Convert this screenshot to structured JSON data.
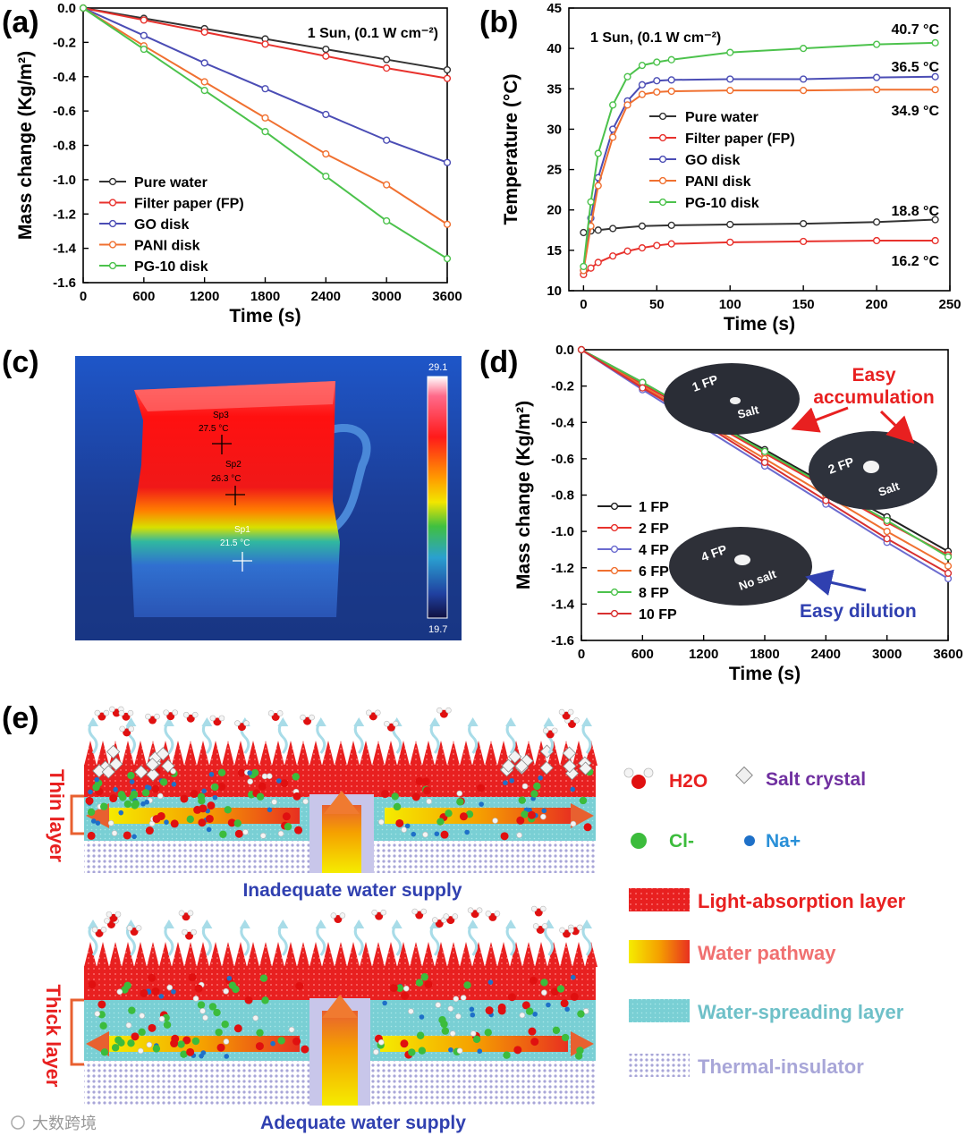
{
  "panel_labels": [
    "(a)",
    "(b)",
    "(c)",
    "(d)",
    "(e)"
  ],
  "panel_c": {
    "scale_max": "29.1",
    "scale_min": "19.7",
    "spots": [
      {
        "name": "Sp3",
        "temp": "27.5 °C"
      },
      {
        "name": "Sp2",
        "temp": "26.3 °C"
      },
      {
        "name": "Sp1",
        "temp": "21.5 °C"
      }
    ]
  },
  "panel_e": {
    "top_side_label": "Thin layer",
    "top_caption": "Inadequate water supply",
    "bottom_side_label": "Thick layer",
    "bottom_caption": "Adequate water supply",
    "legend": {
      "h2o": "H2O",
      "salt": "Salt crystal",
      "cl": "Cl-",
      "na": "Na+",
      "light": "Light-absorption layer",
      "pathway": "Water pathway",
      "spreading": "Water-spreading  layer",
      "insulator": "Thermal-insulator"
    }
  },
  "watermark": "大数跨境",
  "chart_data": [
    {
      "id": "a",
      "type": "line",
      "annotation": "1 Sun, (0.1 W cm⁻²)",
      "xlabel": "Time (s)",
      "ylabel": "Mass change (Kg/m²)",
      "xlim": [
        0,
        3600
      ],
      "ylim": [
        -1.6,
        0.0
      ],
      "xticks": [
        0,
        600,
        1200,
        1800,
        2400,
        3000,
        3600
      ],
      "yticks": [
        0.0,
        -0.2,
        -0.4,
        -0.6,
        -0.8,
        -1.0,
        -1.2,
        -1.4,
        -1.6
      ],
      "ytick_labels": [
        "0.0",
        "-0.2",
        "-0.4",
        "-0.6",
        "-0.8",
        "-1.0",
        "-1.2",
        "-1.4",
        "-1.6"
      ],
      "legend_position": "bottom-left",
      "series": [
        {
          "name": "Pure water",
          "color": "#333333",
          "x": [
            0,
            600,
            1200,
            1800,
            2400,
            3000,
            3600
          ],
          "y": [
            0,
            -0.06,
            -0.12,
            -0.18,
            -0.24,
            -0.3,
            -0.36
          ]
        },
        {
          "name": "Filter paper (FP)",
          "color": "#e8322d",
          "x": [
            0,
            600,
            1200,
            1800,
            2400,
            3000,
            3600
          ],
          "y": [
            0,
            -0.07,
            -0.14,
            -0.21,
            -0.28,
            -0.35,
            -0.41
          ]
        },
        {
          "name": "GO disk",
          "color": "#4b4db5",
          "x": [
            0,
            600,
            1200,
            1800,
            2400,
            3000,
            3600
          ],
          "y": [
            0,
            -0.16,
            -0.32,
            -0.47,
            -0.62,
            -0.77,
            -0.9
          ]
        },
        {
          "name": "PANI disk",
          "color": "#f07030",
          "x": [
            0,
            600,
            1200,
            1800,
            2400,
            3000,
            3600
          ],
          "y": [
            0,
            -0.22,
            -0.43,
            -0.64,
            -0.85,
            -1.03,
            -1.26
          ]
        },
        {
          "name": "PG-10 disk",
          "color": "#4cc24c",
          "x": [
            0,
            600,
            1200,
            1800,
            2400,
            3000,
            3600
          ],
          "y": [
            0,
            -0.24,
            -0.48,
            -0.72,
            -0.98,
            -1.24,
            -1.46
          ]
        }
      ]
    },
    {
      "id": "b",
      "type": "line",
      "annotation": "1 Sun, (0.1 W cm⁻²)",
      "xlabel": "Time (s)",
      "ylabel": "Temperature (°C)",
      "xlim": [
        -10,
        250
      ],
      "ylim": [
        10,
        45
      ],
      "xticks": [
        0,
        50,
        100,
        150,
        200,
        250
      ],
      "yticks": [
        10,
        15,
        20,
        25,
        30,
        35,
        40,
        45
      ],
      "ytick_labels": [
        "10",
        "15",
        "20",
        "25",
        "30",
        "35",
        "40",
        "45"
      ],
      "legend_position": "center-right",
      "end_labels": [
        "40.7 °C",
        "36.5 °C",
        "34.9 °C",
        "18.8 °C",
        "16.2 °C"
      ],
      "series": [
        {
          "name": "Pure water",
          "color": "#333333",
          "x": [
            0,
            5,
            10,
            20,
            40,
            60,
            100,
            150,
            200,
            240
          ],
          "y": [
            17.2,
            17.4,
            17.5,
            17.7,
            18.0,
            18.1,
            18.2,
            18.3,
            18.5,
            18.8
          ]
        },
        {
          "name": "Filter paper (FP)",
          "color": "#e8322d",
          "x": [
            0,
            5,
            10,
            20,
            30,
            40,
            50,
            60,
            100,
            150,
            200,
            240
          ],
          "y": [
            12.0,
            12.8,
            13.5,
            14.3,
            14.9,
            15.3,
            15.6,
            15.8,
            16.0,
            16.1,
            16.2,
            16.2
          ]
        },
        {
          "name": "GO disk",
          "color": "#4b4db5",
          "x": [
            0,
            5,
            10,
            20,
            30,
            40,
            50,
            60,
            100,
            150,
            200,
            240
          ],
          "y": [
            12.5,
            19,
            24,
            30,
            33.5,
            35.5,
            36.0,
            36.1,
            36.2,
            36.2,
            36.4,
            36.5
          ]
        },
        {
          "name": "PANI disk",
          "color": "#f07030",
          "x": [
            0,
            5,
            10,
            20,
            30,
            40,
            50,
            60,
            100,
            150,
            200,
            240
          ],
          "y": [
            12.5,
            18,
            23,
            29,
            33,
            34.3,
            34.6,
            34.7,
            34.8,
            34.8,
            34.9,
            34.9
          ]
        },
        {
          "name": "PG-10 disk",
          "color": "#4cc24c",
          "x": [
            0,
            5,
            10,
            20,
            30,
            40,
            50,
            60,
            100,
            150,
            200,
            240
          ],
          "y": [
            13.0,
            21,
            27,
            33,
            36.5,
            37.9,
            38.3,
            38.6,
            39.5,
            40.0,
            40.5,
            40.7
          ]
        }
      ]
    },
    {
      "id": "d",
      "type": "line",
      "xlabel": "Time (s)",
      "ylabel": "Mass change (Kg/m²)",
      "xlim": [
        0,
        3600
      ],
      "ylim": [
        -1.6,
        0.0
      ],
      "xticks": [
        0,
        600,
        1200,
        1800,
        2400,
        3000,
        3600
      ],
      "yticks": [
        0.0,
        -0.2,
        -0.4,
        -0.6,
        -0.8,
        -1.0,
        -1.2,
        -1.4,
        -1.6
      ],
      "ytick_labels": [
        "0.0",
        "-0.2",
        "-0.4",
        "-0.6",
        "-0.8",
        "-1.0",
        "-1.2",
        "-1.4",
        "-1.6"
      ],
      "legend_position": "bottom-left",
      "annotations": {
        "accumulation": "Easy\naccumulation",
        "dilution": "Easy dilution",
        "disk1": "1 FP",
        "disk1_salt": "Salt",
        "disk2": "2 FP",
        "disk2_salt": "Salt",
        "disk4": "4 FP",
        "disk4_salt": "No salt"
      },
      "series": [
        {
          "name": "1 FP",
          "color": "#222222",
          "x": [
            0,
            600,
            1200,
            1800,
            2400,
            3000,
            3600
          ],
          "y": [
            0,
            -0.18,
            -0.37,
            -0.55,
            -0.74,
            -0.92,
            -1.11
          ]
        },
        {
          "name": "2 FP",
          "color": "#e8322d",
          "x": [
            0,
            600,
            1200,
            1800,
            2400,
            3000,
            3600
          ],
          "y": [
            0,
            -0.19,
            -0.38,
            -0.57,
            -0.76,
            -0.95,
            -1.13
          ]
        },
        {
          "name": "4 FP",
          "color": "#6b6bcf",
          "x": [
            0,
            600,
            1200,
            1800,
            2400,
            3000,
            3600
          ],
          "y": [
            0,
            -0.22,
            -0.43,
            -0.64,
            -0.85,
            -1.06,
            -1.26
          ]
        },
        {
          "name": "6 FP",
          "color": "#f07030",
          "x": [
            0,
            600,
            1200,
            1800,
            2400,
            3000,
            3600
          ],
          "y": [
            0,
            -0.2,
            -0.4,
            -0.6,
            -0.8,
            -1.0,
            -1.19
          ]
        },
        {
          "name": "8 FP",
          "color": "#4cc24c",
          "x": [
            0,
            600,
            1200,
            1800,
            2400,
            3000,
            3600
          ],
          "y": [
            0,
            -0.18,
            -0.37,
            -0.56,
            -0.75,
            -0.94,
            -1.14
          ]
        },
        {
          "name": "10 FP",
          "color": "#d83030",
          "x": [
            0,
            600,
            1200,
            1800,
            2400,
            3000,
            3600
          ],
          "y": [
            0,
            -0.21,
            -0.41,
            -0.62,
            -0.83,
            -1.04,
            -1.23
          ]
        }
      ]
    }
  ]
}
